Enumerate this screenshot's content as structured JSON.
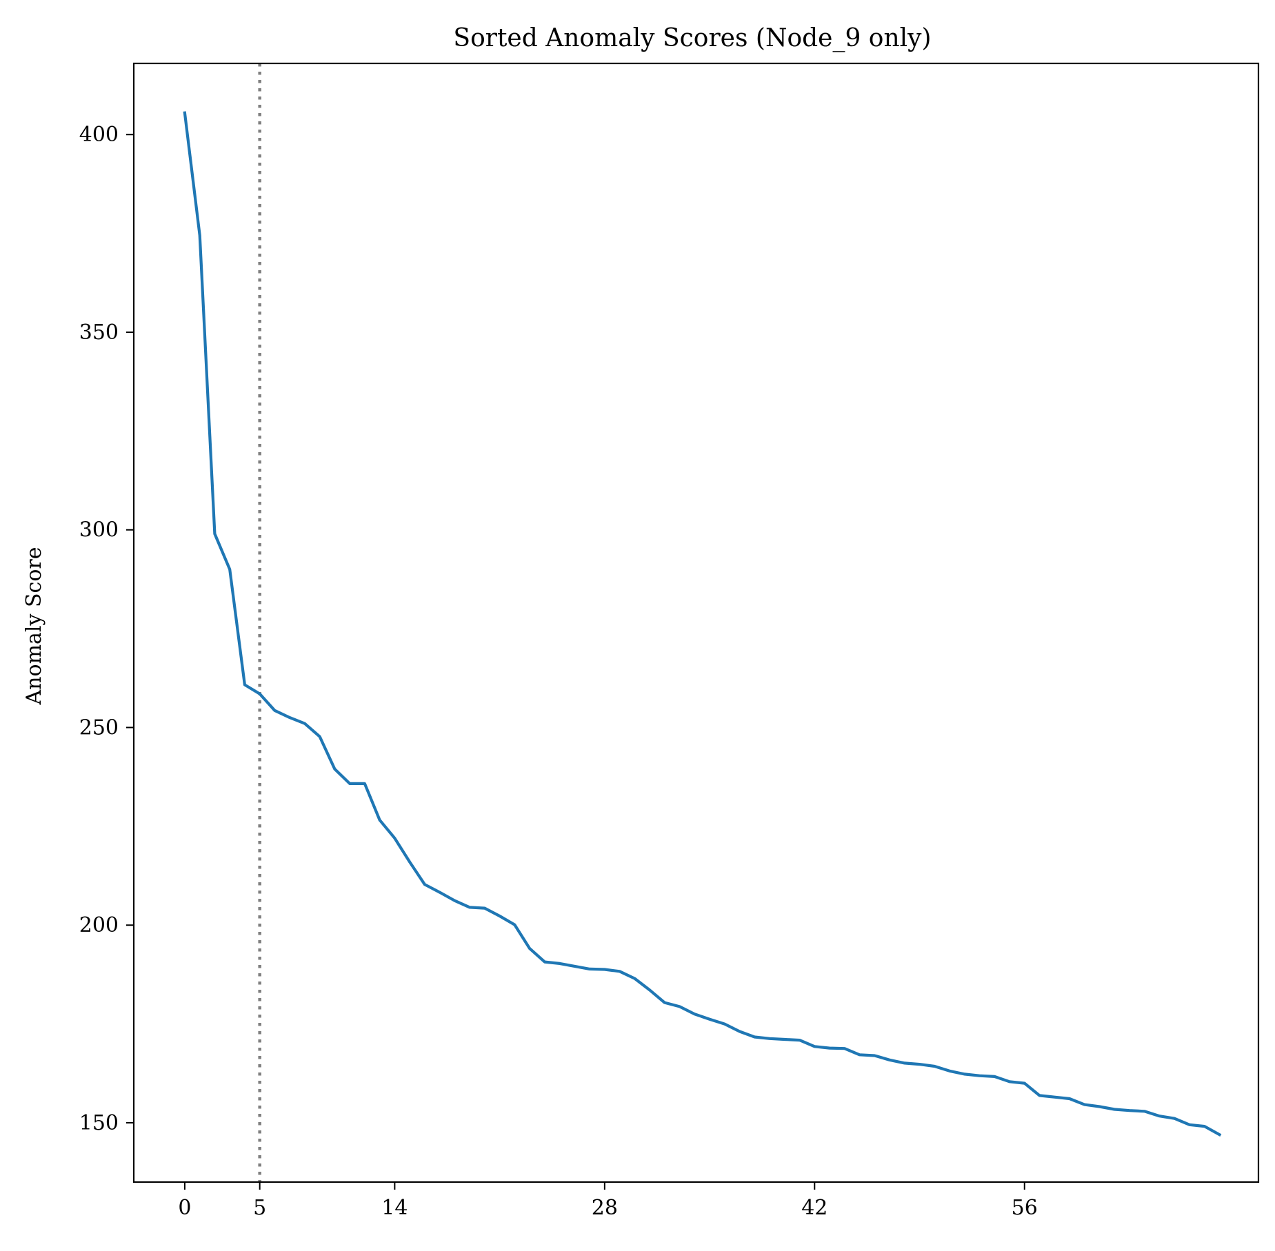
{
  "chart_data": {
    "type": "line",
    "title": "Sorted Anomaly Scores (Node_9 only)",
    "xlabel": "",
    "ylabel": "Anomaly Score",
    "xlim": [
      -3.4,
      71.6
    ],
    "ylim": [
      135,
      418
    ],
    "x_ticks": [
      0,
      5,
      14,
      28,
      42,
      56
    ],
    "y_ticks": [
      150,
      200,
      250,
      300,
      350,
      400
    ],
    "grid": false,
    "legend": "none",
    "vline": {
      "x": 5,
      "style": "dotted",
      "color": "#808080"
    },
    "series": [
      {
        "color": "#1f77b4",
        "x": [
          0,
          1,
          2,
          3,
          4,
          5,
          6,
          7,
          8,
          9,
          10,
          11,
          12,
          13,
          14,
          15,
          16,
          17,
          18,
          19,
          20,
          21,
          22,
          23,
          24,
          25,
          26,
          27,
          28,
          29,
          30,
          31,
          32,
          33,
          34,
          35,
          36,
          37,
          38,
          39,
          40,
          41,
          42,
          43,
          44,
          45,
          46,
          47,
          48,
          49,
          50,
          51,
          52,
          53,
          54,
          55,
          56,
          57,
          58,
          59,
          60,
          61,
          62,
          63,
          64,
          65,
          66,
          67,
          68,
          69
        ],
        "values": [
          405.5,
          374.5,
          299,
          290,
          260.8,
          258.5,
          254.3,
          252.5,
          251,
          247.7,
          239.5,
          235.8,
          235.8,
          226.6,
          222,
          216,
          210.3,
          208.3,
          206.2,
          204.5,
          204.3,
          202.3,
          200.1,
          194.1,
          190.7,
          190.3,
          189.6,
          188.9,
          188.8,
          188.3,
          186.5,
          183.6,
          180.4,
          179.4,
          177.5,
          176.2,
          175,
          173.1,
          171.7,
          171.3,
          171.1,
          170.9,
          169.3,
          168.9,
          168.8,
          167.2,
          167,
          165.9,
          165.1,
          164.8,
          164.3,
          163.1,
          162.3,
          161.9,
          161.7,
          160.4,
          160,
          156.9,
          156.5,
          156.1,
          154.6,
          154.1,
          153.4,
          153.1,
          152.9,
          151.7,
          151.1,
          149.5,
          149.1,
          147
        ]
      }
    ]
  }
}
